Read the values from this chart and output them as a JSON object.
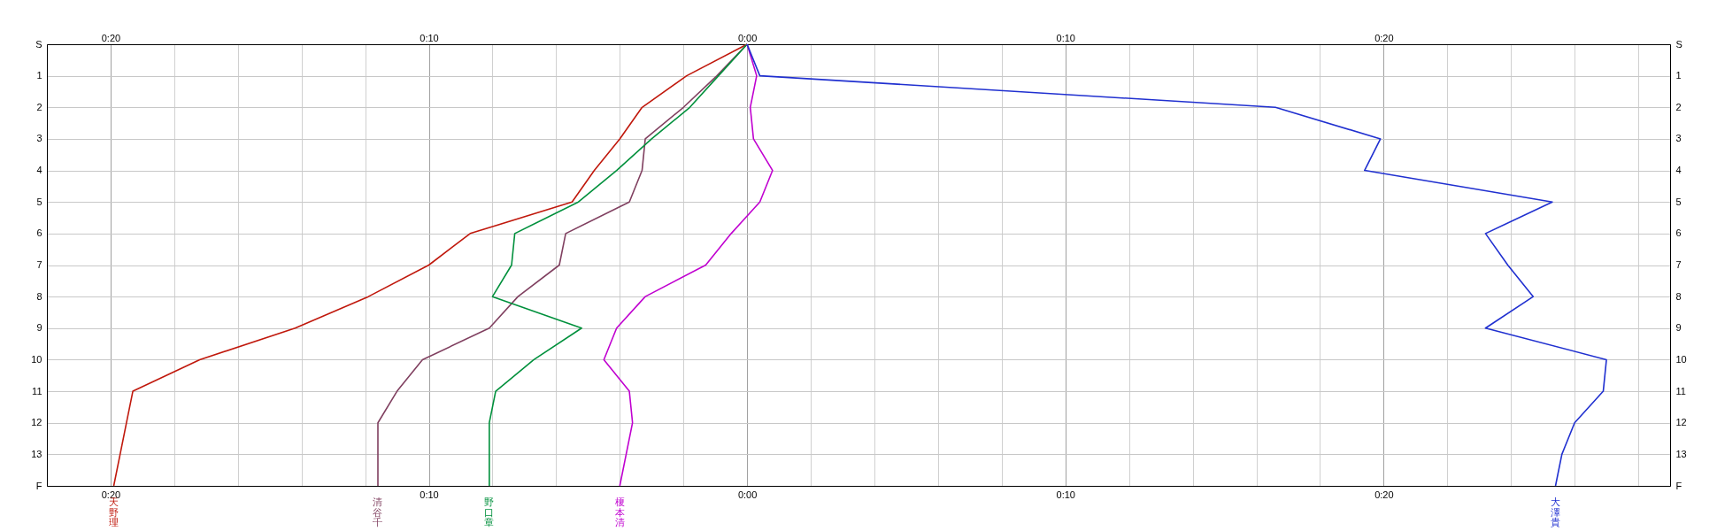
{
  "chart_data": {
    "type": "line",
    "xlim": [
      -22,
      29
    ],
    "xticks": [
      {
        "value": -20,
        "label": "0:20"
      },
      {
        "value": -18,
        "label": null
      },
      {
        "value": -16,
        "label": null
      },
      {
        "value": -14,
        "label": null
      },
      {
        "value": -12,
        "label": null
      },
      {
        "value": -10,
        "label": "0:10"
      },
      {
        "value": -8,
        "label": null
      },
      {
        "value": -6,
        "label": null
      },
      {
        "value": -4,
        "label": null
      },
      {
        "value": -2,
        "label": null
      },
      {
        "value": 0,
        "label": "0:00"
      },
      {
        "value": 2,
        "label": null
      },
      {
        "value": 4,
        "label": null
      },
      {
        "value": 6,
        "label": null
      },
      {
        "value": 8,
        "label": null
      },
      {
        "value": 10,
        "label": "0:10"
      },
      {
        "value": 12,
        "label": null
      },
      {
        "value": 14,
        "label": null
      },
      {
        "value": 16,
        "label": null
      },
      {
        "value": 18,
        "label": null
      },
      {
        "value": 20,
        "label": "0:20"
      },
      {
        "value": 22,
        "label": null
      },
      {
        "value": 24,
        "label": null
      },
      {
        "value": 26,
        "label": null
      },
      {
        "value": 28,
        "label": null
      }
    ],
    "x2lim": [
      -22,
      29
    ],
    "x2ticks": [
      {
        "value": -20,
        "label": "0:20"
      },
      {
        "value": -10,
        "label": "0:10"
      },
      {
        "value": 0,
        "label": "0:00"
      },
      {
        "value": 10,
        "label": "0:10"
      },
      {
        "value": 20,
        "label": "0:20"
      }
    ],
    "ylim": [
      14,
      0
    ],
    "yticks": [
      {
        "value": 0,
        "label": "S"
      },
      1,
      2,
      3,
      4,
      5,
      6,
      7,
      8,
      9,
      10,
      11,
      12,
      13,
      {
        "value": 14,
        "label": "F"
      }
    ],
    "y2lim": [
      14,
      0
    ],
    "y2ticks": [
      {
        "value": 0,
        "label": "S"
      },
      1,
      2,
      3,
      4,
      5,
      6,
      7,
      8,
      9,
      10,
      11,
      12,
      13,
      {
        "value": 14,
        "label": "F"
      }
    ],
    "grid": true,
    "marker": "none",
    "line_style": "solid",
    "series": [
      {
        "name": "天野理",
        "color": "#c0180c",
        "x": [
          0,
          -1.9,
          -3.3,
          -4.0,
          -4.8,
          -5.5,
          -8.7,
          -10.0,
          -11.9,
          -14.2,
          -17.2,
          -19.3,
          -19.5,
          -19.7,
          -19.9
        ],
        "values": [
          0,
          1,
          2,
          3,
          4,
          5,
          6,
          7,
          8,
          9,
          10,
          11,
          12,
          13,
          14
        ]
      },
      {
        "name": "清谷千",
        "color": "#804060",
        "x": [
          0,
          -0.95,
          -2.0,
          -3.2,
          -3.3,
          -3.7,
          -5.7,
          -5.9,
          -7.2,
          -8.1,
          -10.2,
          -11.0,
          -11.6,
          -11.6,
          -11.6
        ],
        "values": [
          0,
          1,
          2,
          3,
          4,
          5,
          6,
          7,
          8,
          9,
          10,
          11,
          12,
          13,
          14
        ]
      },
      {
        "name": "野口章",
        "color": "#00903c",
        "x": [
          0,
          -0.9,
          -1.8,
          -3.0,
          -4.1,
          -5.3,
          -7.3,
          -7.4,
          -8.0,
          -5.2,
          -6.7,
          -7.9,
          -8.1,
          -8.1,
          -8.1
        ],
        "values": [
          0,
          1,
          2,
          3,
          4,
          5,
          6,
          7,
          8,
          9,
          10,
          11,
          12,
          13,
          14
        ]
      },
      {
        "name": "榎本清",
        "color": "#c000d0",
        "x": [
          0,
          0.3,
          0.1,
          0.2,
          0.8,
          0.4,
          -0.5,
          -1.3,
          -3.2,
          -4.1,
          -4.5,
          -3.7,
          -3.6,
          -3.8,
          -4.0
        ],
        "values": [
          0,
          1,
          2,
          3,
          4,
          5,
          6,
          7,
          8,
          9,
          10,
          11,
          12,
          13,
          14
        ]
      },
      {
        "name": "大澤貴",
        "color": "#2030d0",
        "x": [
          0,
          0.4,
          16.6,
          19.9,
          19.4,
          25.3,
          23.2,
          23.9,
          24.7,
          23.2,
          27.0,
          26.9,
          26.0,
          25.6,
          25.4
        ],
        "values": [
          0,
          1,
          2,
          3,
          4,
          5,
          6,
          7,
          8,
          9,
          10,
          11,
          12,
          13,
          14
        ]
      }
    ]
  }
}
